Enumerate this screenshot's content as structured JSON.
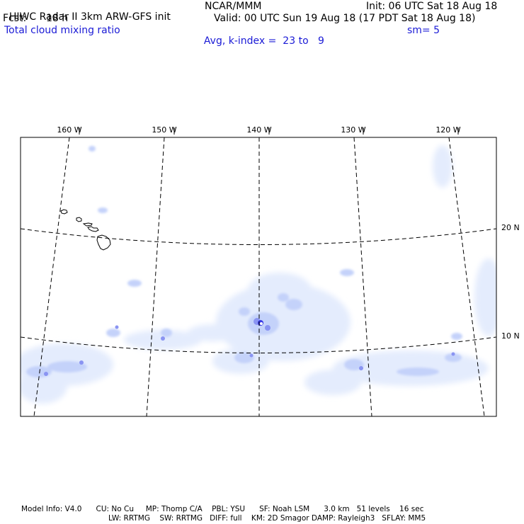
{
  "header": {
    "model_title": "HIWC Radar II 3km ARW-GFS init",
    "org": "NCAR/MMM",
    "init_label": "Init: 06 UTC Sat 18 Aug 18",
    "fcst_label": "Fcst:",
    "fcst_value": "18 h",
    "valid_label": "Valid: 00 UTC Sun 19 Aug 18 (17 PDT Sat 18 Aug 18)",
    "field_name": "Total cloud mixing ratio",
    "avg_label": "Avg, k-index =",
    "k_from": "23",
    "k_to_word": "to",
    "k_to": "9",
    "smooth_label": "sm= 5"
  },
  "map": {
    "longitude_labels": [
      "160 W",
      "150 W",
      "140 W",
      "130 W",
      "120 W"
    ],
    "latitude_labels": [
      "20 N",
      "10 N"
    ],
    "colors": {
      "cloud_light": "#e4ecfd",
      "cloud_mid": "#c4d2fa",
      "cloud_strong": "#8a94f2",
      "cloud_core": "#3a3ae6",
      "grid": "#000000",
      "coast": "#000000"
    }
  },
  "footer": {
    "line1": "Model Info: V4.0      CU: No Cu     MP: Thomp C/A    PBL: YSU      SF: Noah LSM      3.0 km   51 levels    16 sec",
    "line2": "LW: RRTMG    SW: RRTMG   DIFF: full    KM: 2D Smagor DAMP: Rayleigh3   SFLAY: MM5"
  }
}
